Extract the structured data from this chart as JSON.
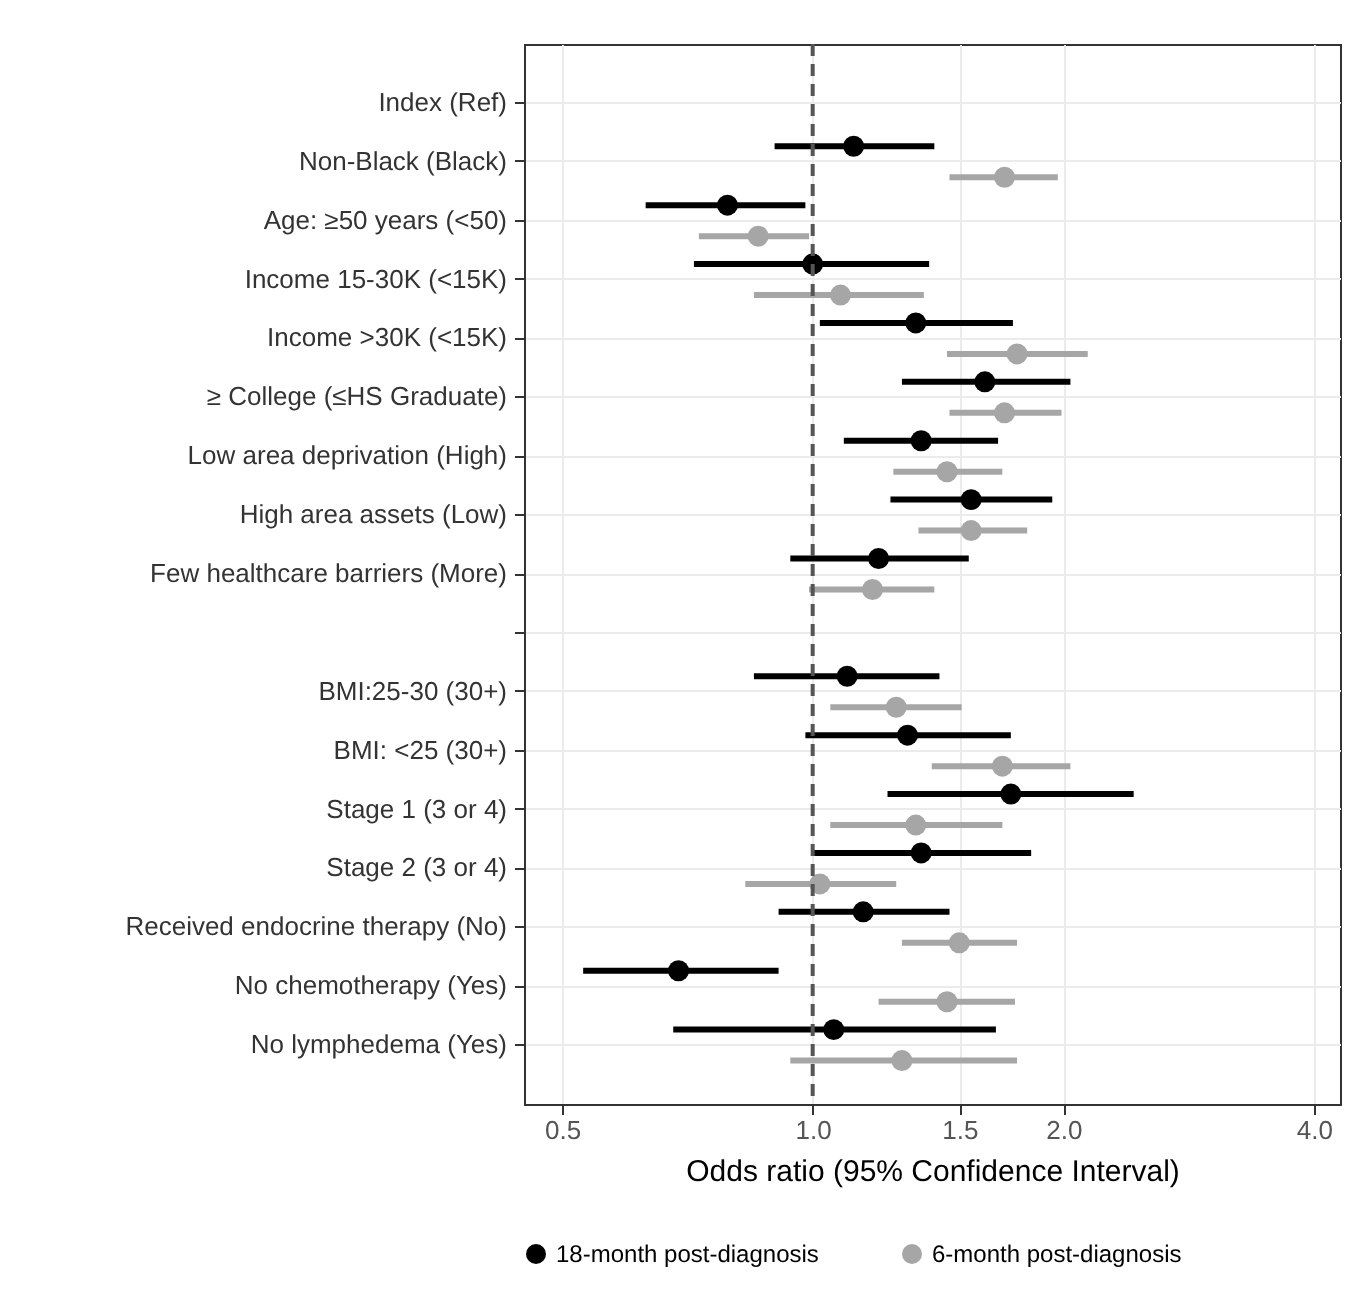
{
  "chart_data": {
    "type": "scatter",
    "xlabel": "Odds ratio (95% Confidence Interval)",
    "categories": [
      "Index (Ref)",
      "Non-Black (Black)",
      "Age: ≥50 years (<50)",
      "Income 15-30K (<15K)",
      "Income >30K (<15K)",
      "≥ College (≤HS Graduate)",
      "Low area deprivation (High)",
      "High area assets (Low)",
      "Few healthcare barriers (More)",
      null,
      "BMI:25-30 (30+)",
      "BMI: <25 (30+)",
      "Stage 1 (3 or 4)",
      "Stage 2 (3 or 4)",
      "Received endocrine therapy (No)",
      "No chemotherapy (Yes)",
      "No lymphedema (Yes)"
    ],
    "series": [
      {
        "name": "18-month post-diagnosis",
        "color": "#000000",
        "values": [
          null,
          1.12,
          0.79,
          1.0,
          1.33,
          1.61,
          1.35,
          1.55,
          1.2,
          null,
          1.1,
          1.3,
          1.73,
          1.35,
          1.15,
          0.69,
          1.06
        ],
        "errors": [
          null,
          [
            0.9,
            1.4
          ],
          [
            0.63,
            0.98
          ],
          [
            0.72,
            1.38
          ],
          [
            1.02,
            1.74
          ],
          [
            1.28,
            2.04
          ],
          [
            1.09,
            1.67
          ],
          [
            1.24,
            1.94
          ],
          [
            0.94,
            1.54
          ],
          null,
          [
            0.85,
            1.42
          ],
          [
            0.98,
            1.73
          ],
          [
            1.23,
            2.43
          ],
          [
            1.0,
            1.83
          ],
          [
            0.91,
            1.46
          ],
          [
            0.53,
            0.91
          ],
          [
            0.68,
            1.66
          ]
        ]
      },
      {
        "name": "6-month post-diagnosis",
        "color": "#a6a6a6",
        "values": [
          null,
          1.7,
          0.86,
          1.08,
          1.76,
          1.7,
          1.45,
          1.55,
          1.18,
          null,
          1.26,
          1.69,
          1.33,
          1.02,
          1.5,
          1.45,
          1.28
        ],
        "errors": [
          null,
          [
            1.46,
            1.97
          ],
          [
            0.73,
            0.99
          ],
          [
            0.85,
            1.36
          ],
          [
            1.45,
            2.14
          ],
          [
            1.46,
            1.99
          ],
          [
            1.25,
            1.69
          ],
          [
            1.34,
            1.81
          ],
          [
            0.99,
            1.4
          ],
          null,
          [
            1.05,
            1.51
          ],
          [
            1.39,
            2.04
          ],
          [
            1.05,
            1.69
          ],
          [
            0.83,
            1.26
          ],
          [
            1.28,
            1.76
          ],
          [
            1.2,
            1.75
          ],
          [
            0.94,
            1.76
          ]
        ]
      }
    ],
    "orientation": "horizontal",
    "log": "x",
    "xlim": [
      0.45,
      4.3
    ],
    "xticks": [
      0.5,
      {
        "value": 1,
        "label": "1.0"
      },
      1.5,
      {
        "value": 2,
        "label": "2.0"
      },
      {
        "value": 4,
        "label": "4.0"
      }
    ],
    "ref_lines": [
      {
        "axis": "x",
        "value": 1,
        "color": "#555555",
        "line_style": "dashed"
      }
    ],
    "grid": true,
    "legend": "bottom",
    "marker": "circle"
  }
}
